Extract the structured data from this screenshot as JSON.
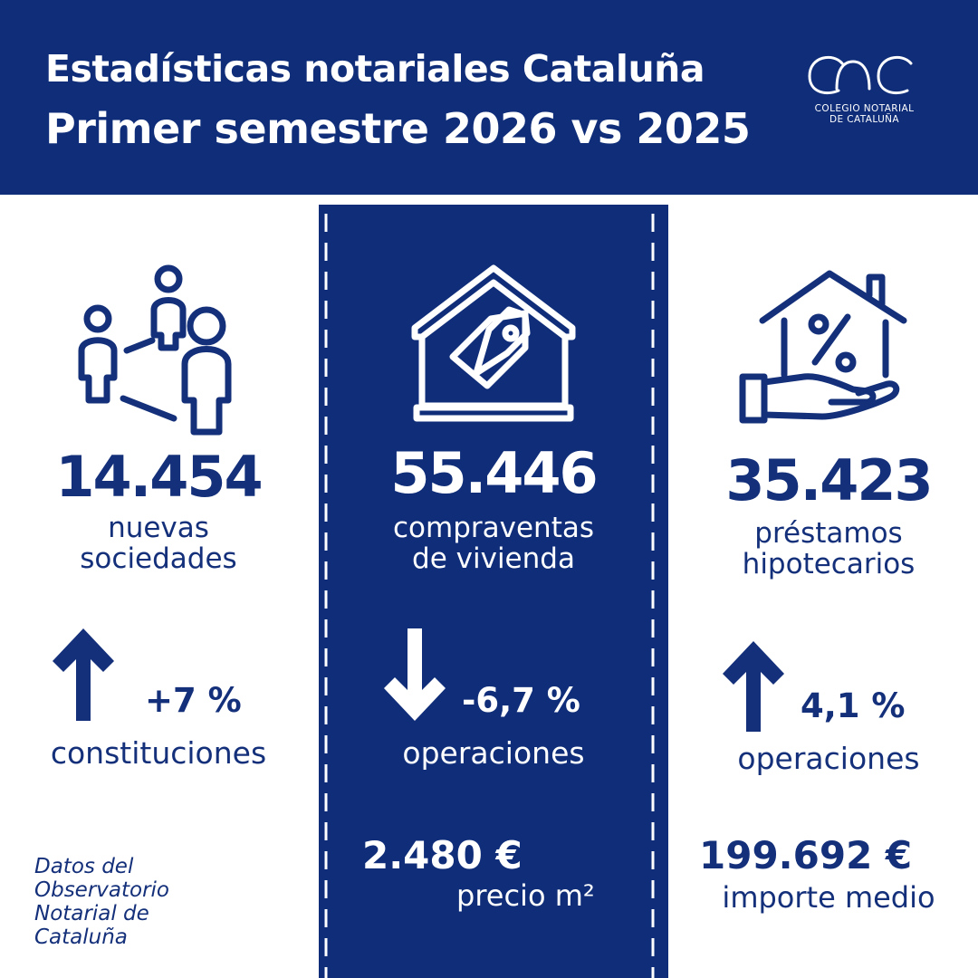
{
  "header": {
    "title_line1": "Estadísticas notariales Cataluña",
    "title_line2": "Primer semestre 2026 vs 2025",
    "logo_line1": "COLEGIO NOTARIAL",
    "logo_line2": "DE CATALUÑA"
  },
  "colors": {
    "navy": "#0f2d78",
    "text_navy": "#14307a",
    "white": "#ffffff"
  },
  "columns": [
    {
      "icon": "people-network-icon",
      "number": "14.454",
      "caption_line1": "nuevas",
      "caption_line2": "sociedades",
      "trend": "up",
      "trend_icon": "arrow-up-icon",
      "change": "+7 %",
      "change_label": "constituciones"
    },
    {
      "icon": "house-price-tag-icon",
      "number": "55.446",
      "caption_line1": "compraventas",
      "caption_line2": "de vivienda",
      "trend": "down",
      "trend_icon": "arrow-down-icon",
      "change": "-6,7 %",
      "change_label": "operaciones",
      "value": "2.480 €",
      "value_label": "precio m²"
    },
    {
      "icon": "house-percent-hand-icon",
      "number": "35.423",
      "caption_line1": "préstamos",
      "caption_line2": "hipotecarios",
      "trend": "up",
      "trend_icon": "arrow-up-icon",
      "change": "4,1 %",
      "change_label": "operaciones",
      "value": "199.692 €",
      "value_label": "importe medio"
    }
  ],
  "source": {
    "line1": "Datos del",
    "line2": "Observatorio",
    "line3": "Notarial de",
    "line4": "Cataluña"
  }
}
